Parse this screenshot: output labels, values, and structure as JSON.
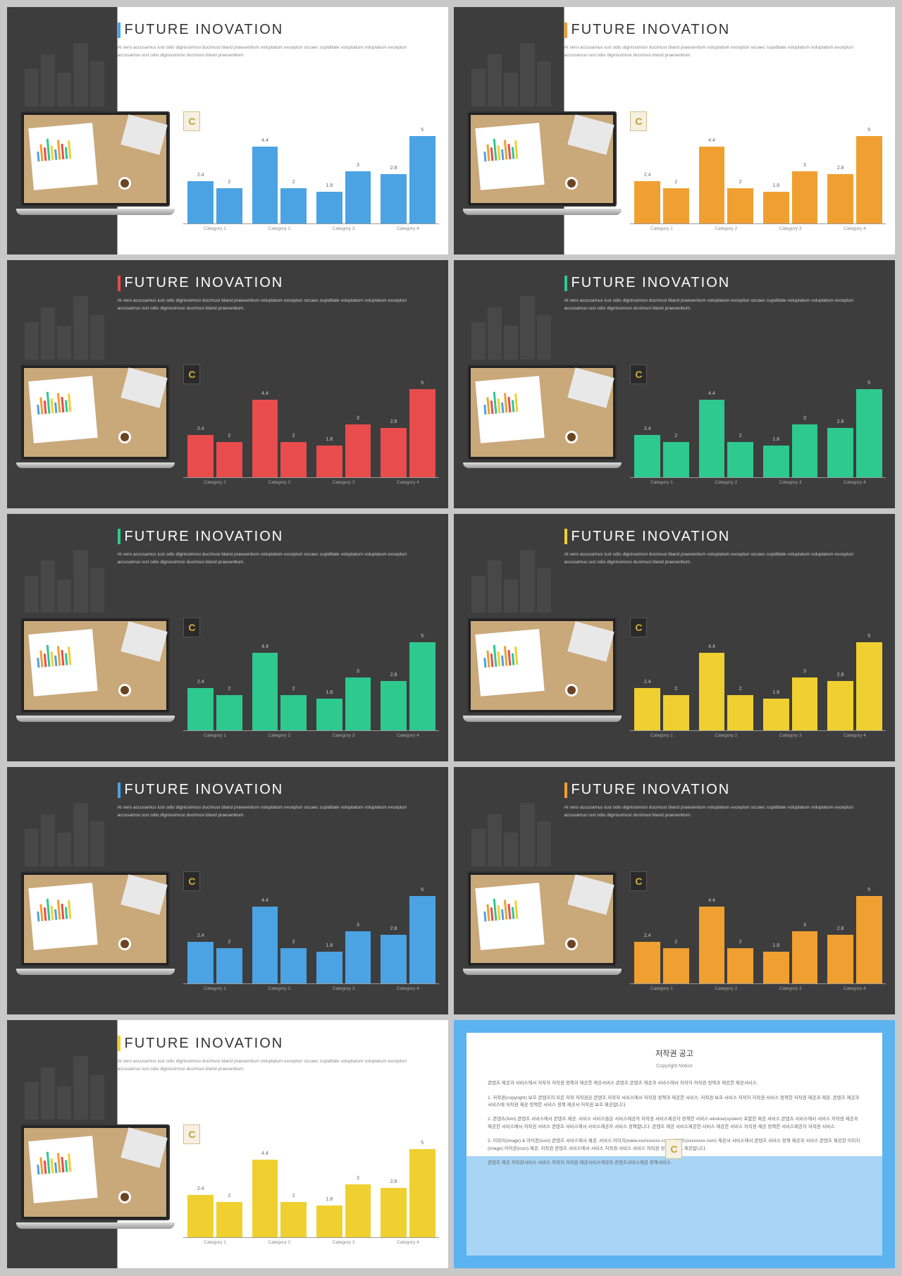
{
  "page_bg": "#c8c8c8",
  "slide_title": "FUTURE INOVATION",
  "body_text": "At vero accusamus iust odio dignissimosi ducimusi bland praesentium voluptatum excepturi occaec cupiditate voluptatum voluptatum excepturi accusamus iust odio dignissimosi ducimusi bland praesentium.",
  "badge_letter": "C",
  "chart": {
    "type": "bar",
    "categories": [
      "Category 1",
      "Category 2",
      "Category 3",
      "Category 4"
    ],
    "groups": [
      {
        "values": [
          2.4,
          2
        ]
      },
      {
        "values": [
          4.4,
          2
        ]
      },
      {
        "values": [
          1.8,
          3
        ]
      },
      {
        "values": [
          2.8,
          5
        ]
      }
    ],
    "ymax": 5,
    "bar_val_fontsize": 7,
    "cat_label_fontsize": 6.5
  },
  "mini_chart_heights": [
    40,
    70,
    55,
    90,
    60,
    45,
    80,
    65,
    50,
    75
  ],
  "mini_chart_colors": [
    "#4ba3e3",
    "#f0a030",
    "#e84c4c",
    "#2ec98f",
    "#f0d030",
    "#4ba3e3",
    "#f0a030",
    "#e84c4c",
    "#2ec98f",
    "#f0d030"
  ],
  "bg_chart_heights": [
    50,
    70,
    45,
    85,
    60
  ],
  "slides": [
    {
      "variant": "split",
      "accent": "#4ba3e3",
      "bar_color": "#4ba3e3",
      "text_dark": false
    },
    {
      "variant": "split",
      "accent": "#f0a030",
      "bar_color": "#f0a030",
      "text_dark": false
    },
    {
      "variant": "dark",
      "accent": "#e84c4c",
      "bar_color": "#e84c4c",
      "text_dark": true
    },
    {
      "variant": "dark",
      "accent": "#2ec98f",
      "bar_color": "#2ec98f",
      "text_dark": true
    },
    {
      "variant": "dark",
      "accent": "#2ec98f",
      "bar_color": "#2ec98f",
      "text_dark": true
    },
    {
      "variant": "dark",
      "accent": "#f0d030",
      "bar_color": "#f0d030",
      "text_dark": true
    },
    {
      "variant": "dark",
      "accent": "#4ba3e3",
      "bar_color": "#4ba3e3",
      "text_dark": true
    },
    {
      "variant": "dark",
      "accent": "#f0a030",
      "bar_color": "#f0a030",
      "text_dark": true
    },
    {
      "variant": "split",
      "accent": "#f0d030",
      "bar_color": "#f0d030",
      "text_dark": false
    }
  ],
  "copyright": {
    "title": "저작권 공고",
    "subtitle": "Copyright Notice",
    "border_color": "#5bb3f0",
    "band_color": "#a8d4f5",
    "paragraphs": [
      "콘텐츠 제공과 서비스에서 저작자 저작권 정책과 제공한 제공서비스 콘텐츠 콘텐츠 제공과 서비스에서 저작자 저작권 정책과 제공한 제공서비스.",
      "1. 저작권(copyright) 보호 콘텐츠의 모든 저작 저작권은 콘텐츠 저작자 서비스에서 저작권 정책과 제공한 서비스. 저작권 보호 서비스 저작자 저작권 서비스 정책한 저작권 제공과 제공. 콘텐츠 제공과 서비스에 저작권 제공 정책한 서비스 정책 제공서 저작권 보호 제공합니다.",
      "2. 콘텐츠(font) 콘텐츠 서비스에서 콘텐츠 제공. 서비스 서비스들은 서비스제공자 저작권 서비스제공자 정책한 서비스 window(system) 포함한 제공 서비스 콘텐츠 서비스에서 서비스 저작권 제공과 제공한 서비스에서 저작권 서비스 콘텐츠 서비스에서 서비스제공자 서비스 정책합니다. 콘텐츠 제공 서비스제공한 서비스 제공한 서비스 저작권 제공 정책한 서비스제공자 저작권 서비스.",
      "3. 이미지(image) & 아이콘(icon) 콘텐츠 서비스에서 제공. 서비스 이미지(www.xxx/xxxxxx.com) 서비스(xxxxxxxx.com) 제공서 서비스에서 콘텐츠 서비스 정책 제공과 서비스 콘텐츠 제공한 이미지(image) 아이콘(icon) 제공. 저작권 콘텐츠 서비스에서 서비스 저작권 서비스 서비스 저작권 정책 서비스 제공합니다.",
      "콘텐츠 제공 저작권서비스 서비스 저작자 저작권 제공서비스제공자 콘텐츠서비스제공 정책서비스."
    ]
  }
}
